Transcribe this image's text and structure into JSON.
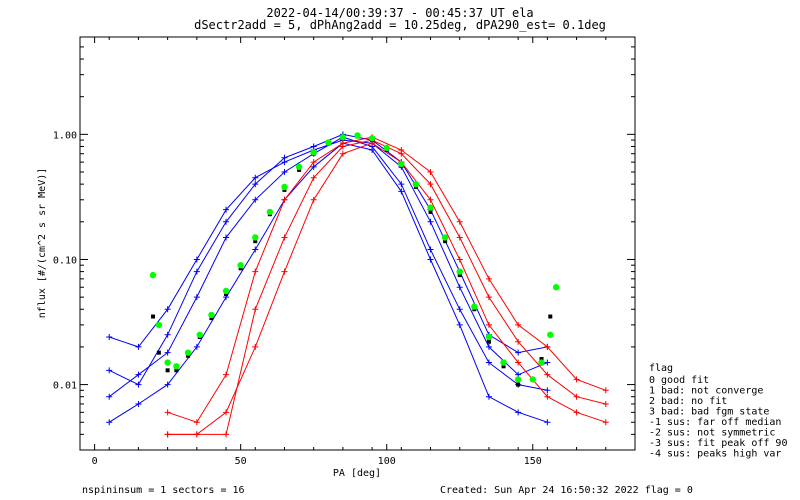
{
  "title_line1": "2022-04-14/00:39:37 - 00:45:37 UT ela",
  "title_line2": "dSectr2add = 5, dPhAng2add = 10.25deg, dPA290_est=   0.1deg",
  "footer": {
    "left": "nspininsum =  1  sectors = 16",
    "right": "Created: Sun Apr 24 16:50:32 2022  flag = 0"
  },
  "legend": {
    "title": "flag",
    "items": [
      " 0 good fit",
      " 1 bad: not converge",
      " 2 bad: no fit",
      " 3 bad: bad fgm state",
      "-1 sus: far off median",
      "-2 sus: not symmetric",
      "-3 sus: fit peak off 90",
      "-4 sus: peaks high var"
    ]
  },
  "colors": {
    "blue_series": "#0000ff",
    "red_series": "#ff0000",
    "fit_curve": "#00ff00",
    "median_marks": "#000000"
  },
  "chart_data": {
    "type": "line",
    "title": "2022-04-14/00:39:37 - 00:45:37 UT ela",
    "subtitle": "dSectr2add = 5, dPhAng2add = 10.25deg, dPA290_est=   0.1deg",
    "xlabel": "PA [deg]",
    "ylabel": "nflux [#/(cm^2 s sr MeV)]",
    "xlim": [
      -5,
      185
    ],
    "ylim": [
      0.003,
      6
    ],
    "yscale": "log",
    "xticks": [
      0,
      50,
      100,
      150
    ],
    "xtick_labels": [
      "0",
      "50",
      "100",
      "150"
    ],
    "yticks": [
      0.01,
      0.1,
      1
    ],
    "ytick_labels": [
      "0.01",
      "0.10",
      "1.00"
    ],
    "grid": false,
    "legend_placement": "right",
    "series": [
      {
        "color": "blue",
        "x": [
          5,
          15,
          25,
          35,
          45,
          55,
          65,
          75,
          85,
          95,
          105,
          115,
          125,
          135,
          145,
          155
        ],
        "y": [
          0.024,
          0.02,
          0.04,
          0.1,
          0.25,
          0.45,
          0.6,
          0.75,
          0.9,
          0.85,
          0.55,
          0.2,
          0.06,
          0.02,
          0.012,
          0.015
        ]
      },
      {
        "color": "blue",
        "x": [
          5,
          15,
          25,
          35,
          45,
          55,
          65,
          75,
          85,
          95,
          105,
          115,
          125,
          135,
          145,
          155
        ],
        "y": [
          0.008,
          0.012,
          0.018,
          0.05,
          0.15,
          0.3,
          0.5,
          0.7,
          0.95,
          0.8,
          0.4,
          0.12,
          0.04,
          0.015,
          0.01,
          0.009
        ]
      },
      {
        "color": "blue",
        "x": [
          5,
          15,
          25,
          35,
          45,
          55,
          65,
          75,
          85,
          95,
          105,
          115,
          125,
          135,
          145,
          155
        ],
        "y": [
          0.005,
          0.007,
          0.01,
          0.02,
          0.05,
          0.12,
          0.3,
          0.55,
          0.85,
          0.75,
          0.35,
          0.1,
          0.03,
          0.008,
          0.006,
          0.005
        ]
      },
      {
        "color": "blue",
        "x": [
          5,
          15,
          25,
          35,
          45,
          55,
          65,
          75,
          85,
          95,
          105,
          115,
          125,
          135,
          145,
          155
        ],
        "y": [
          0.013,
          0.01,
          0.025,
          0.08,
          0.2,
          0.4,
          0.65,
          0.8,
          1.0,
          0.9,
          0.6,
          0.25,
          0.08,
          0.025,
          0.018,
          0.02
        ]
      },
      {
        "color": "red",
        "x": [
          25,
          35,
          45,
          55,
          65,
          75,
          85,
          95,
          105,
          115,
          125,
          135,
          145,
          155,
          165,
          175
        ],
        "y": [
          0.004,
          0.004,
          0.004,
          0.04,
          0.15,
          0.45,
          0.8,
          0.9,
          0.7,
          0.4,
          0.15,
          0.05,
          0.022,
          0.012,
          0.008,
          0.007
        ]
      },
      {
        "color": "red",
        "x": [
          25,
          35,
          45,
          55,
          65,
          75,
          85,
          95,
          105,
          115,
          125,
          135,
          145,
          155,
          165,
          175
        ],
        "y": [
          0.006,
          0.005,
          0.012,
          0.08,
          0.3,
          0.6,
          0.85,
          0.95,
          0.75,
          0.5,
          0.2,
          0.07,
          0.03,
          0.02,
          0.011,
          0.009
        ]
      },
      {
        "color": "red",
        "x": [
          25,
          35,
          45,
          55,
          65,
          75,
          85,
          95,
          105,
          115,
          125,
          135,
          145,
          155,
          165,
          175
        ],
        "y": [
          0.004,
          0.004,
          0.006,
          0.02,
          0.08,
          0.3,
          0.7,
          0.85,
          0.6,
          0.3,
          0.1,
          0.03,
          0.015,
          0.008,
          0.006,
          0.005
        ]
      }
    ],
    "fit_curve": {
      "color": "green",
      "style": "dotted",
      "x": [
        20,
        22,
        25,
        28,
        32,
        36,
        40,
        45,
        50,
        55,
        60,
        65,
        70,
        75,
        80,
        85,
        90,
        95,
        100,
        105,
        110,
        115,
        120,
        125,
        130,
        135,
        140,
        145,
        150,
        153,
        156,
        158
      ],
      "y": [
        0.075,
        0.03,
        0.015,
        0.014,
        0.018,
        0.025,
        0.036,
        0.056,
        0.09,
        0.15,
        0.24,
        0.38,
        0.55,
        0.72,
        0.86,
        0.95,
        0.98,
        0.93,
        0.78,
        0.58,
        0.4,
        0.26,
        0.15,
        0.08,
        0.042,
        0.024,
        0.015,
        0.011,
        0.011,
        0.015,
        0.025,
        0.06
      ]
    },
    "median_marks": {
      "color": "black",
      "x": [
        20,
        22,
        25,
        28,
        32,
        36,
        40,
        45,
        50,
        55,
        60,
        65,
        70,
        75,
        80,
        85,
        90,
        95,
        100,
        105,
        110,
        115,
        120,
        125,
        130,
        135,
        140,
        145,
        150,
        153,
        156
      ],
      "y": [
        0.035,
        0.018,
        0.013,
        0.013,
        0.017,
        0.024,
        0.034,
        0.053,
        0.085,
        0.14,
        0.23,
        0.36,
        0.52,
        0.7,
        0.84,
        0.93,
        0.96,
        0.9,
        0.75,
        0.56,
        0.38,
        0.24,
        0.14,
        0.075,
        0.04,
        0.022,
        0.014,
        0.01,
        0.011,
        0.016,
        0.035
      ]
    }
  }
}
